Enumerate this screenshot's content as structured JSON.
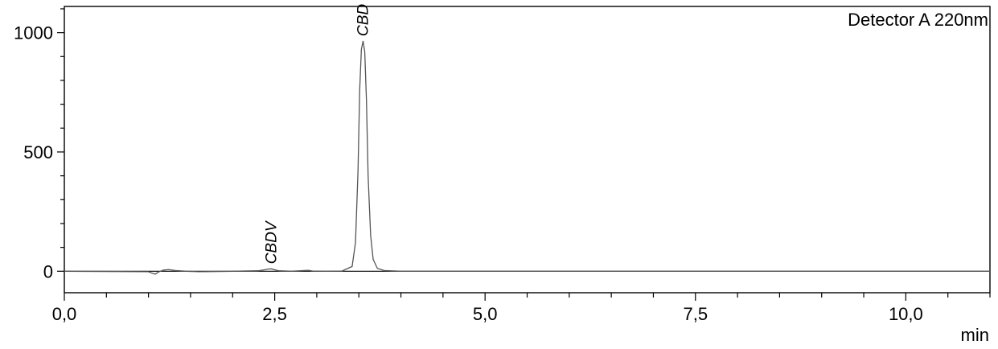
{
  "chart_data": {
    "type": "line",
    "title": "",
    "legend": "Detector A 220nm",
    "xlabel": "min",
    "ylabel": "",
    "xlim": [
      0,
      11.0
    ],
    "ylim": [
      -90,
      1110
    ],
    "x_ticks": [
      0.0,
      2.5,
      5.0,
      7.5,
      10.0
    ],
    "x_tick_labels": [
      "0,0",
      "2,5",
      "5,0",
      "7,5",
      "10,0"
    ],
    "x_minor_step": 0.5,
    "y_ticks": [
      0,
      500,
      1000
    ],
    "y_tick_labels": [
      "0",
      "500",
      "1000"
    ],
    "y_minor_step": 100,
    "grid": false,
    "baseline": 0,
    "peaks": [
      {
        "name": "CBDV",
        "retention_time": 2.46,
        "height": 10
      },
      {
        "name": "CBD",
        "retention_time": 3.55,
        "height": 965
      }
    ],
    "series": [
      {
        "name": "Detector A 220nm",
        "x": [
          0.0,
          1.0,
          1.04,
          1.08,
          1.12,
          1.18,
          1.24,
          1.32,
          1.45,
          1.6,
          2.0,
          2.3,
          2.38,
          2.42,
          2.46,
          2.5,
          2.55,
          2.7,
          2.85,
          2.9,
          2.95,
          3.1,
          3.3,
          3.42,
          3.46,
          3.49,
          3.51,
          3.53,
          3.55,
          3.57,
          3.59,
          3.61,
          3.64,
          3.67,
          3.72,
          3.8,
          4.0,
          11.0
        ],
        "y": [
          0,
          -2,
          -8,
          -12,
          -3,
          5,
          7,
          3,
          0,
          -2,
          0,
          2,
          6,
          9,
          10,
          6,
          2,
          0,
          3,
          4,
          1,
          0,
          1,
          20,
          120,
          420,
          760,
          930,
          965,
          920,
          720,
          400,
          150,
          50,
          12,
          3,
          0,
          0
        ]
      }
    ]
  }
}
